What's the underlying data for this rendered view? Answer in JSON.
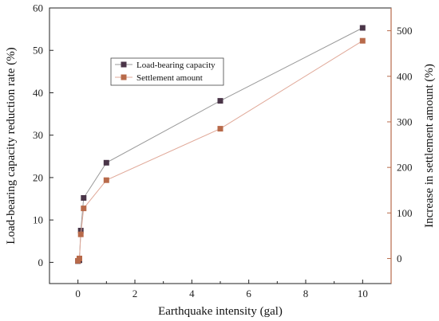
{
  "chart_data": {
    "type": "line",
    "title": "",
    "xlabel": "Earthquake intensity (gal)",
    "ylabel_left": "Load-bearing capacity reduction rate (%)",
    "ylabel_right": "Increase in settlement amount (%)",
    "xlim": [
      -1,
      11
    ],
    "ylim_left": [
      -5,
      60
    ],
    "ylim_right": [
      -55,
      550
    ],
    "x_ticks": [
      0,
      2,
      4,
      6,
      8,
      10
    ],
    "y_ticks_left": [
      0,
      10,
      20,
      30,
      40,
      50,
      60
    ],
    "y_ticks_right": [
      0,
      100,
      200,
      300,
      400,
      500
    ],
    "grid": false,
    "legend_position": "upper-left",
    "series": [
      {
        "name": "Load-bearing capacity",
        "axis": "left",
        "color": "#4a3548",
        "line_color": "#9a9a9a",
        "x": [
          0,
          0.05,
          0.1,
          0.2,
          1,
          5,
          10
        ],
        "y": [
          0.3,
          0.5,
          7.5,
          15.2,
          23.5,
          38.1,
          55.3
        ]
      },
      {
        "name": "Settlement amount",
        "axis": "right",
        "color": "#b86a4a",
        "line_color": "#e0a898",
        "x": [
          0,
          0.05,
          0.1,
          0.2,
          1,
          5,
          10
        ],
        "y": [
          -5,
          0,
          53,
          110,
          172,
          285,
          478
        ]
      }
    ]
  }
}
